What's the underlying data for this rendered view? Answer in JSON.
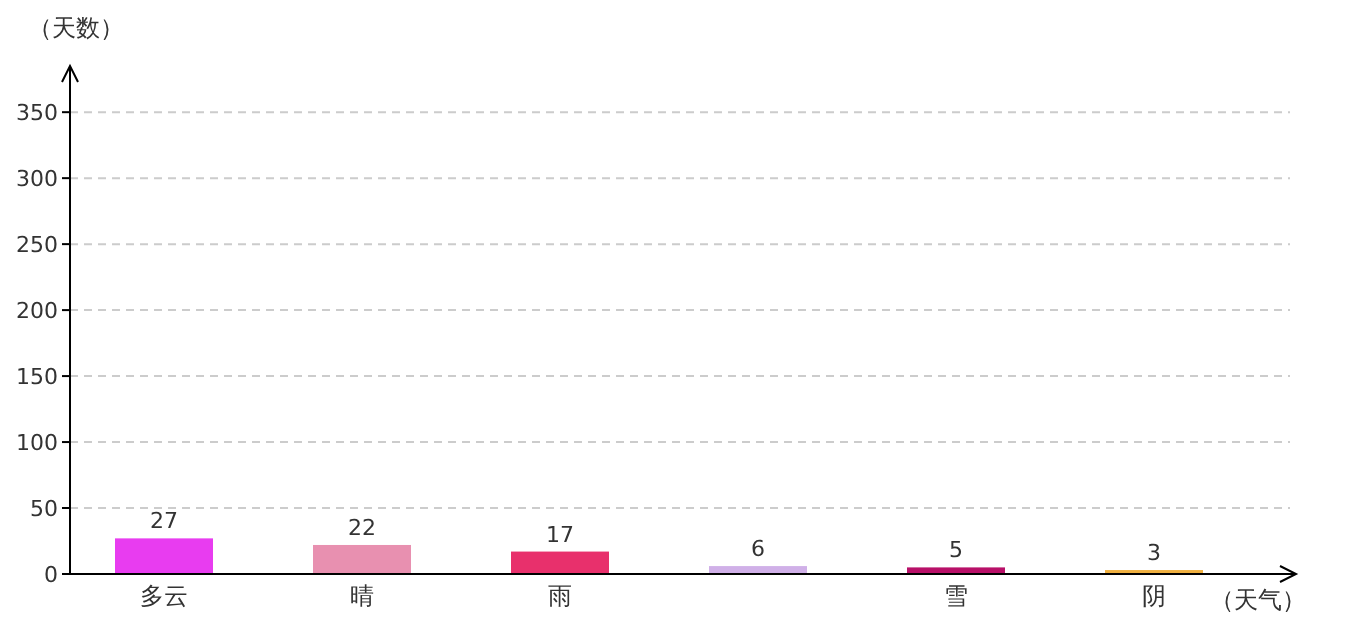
{
  "chart_data": {
    "type": "bar",
    "xlabel": "（天气）",
    "ylabel": "（天数）",
    "categories": [
      "多云",
      "晴",
      "雨",
      null,
      "雪",
      "阴"
    ],
    "values": [
      27,
      22,
      17,
      6,
      5,
      3
    ],
    "colors": [
      "#e83cf0",
      "#e890b0",
      "#e8306c",
      "#d0b0e8",
      "#b81068",
      "#f0b040"
    ],
    "ylim": [
      0,
      385
    ],
    "yticks": [
      0,
      50,
      100,
      150,
      200,
      250,
      300,
      350
    ],
    "grid": "y",
    "data_labels": true
  }
}
